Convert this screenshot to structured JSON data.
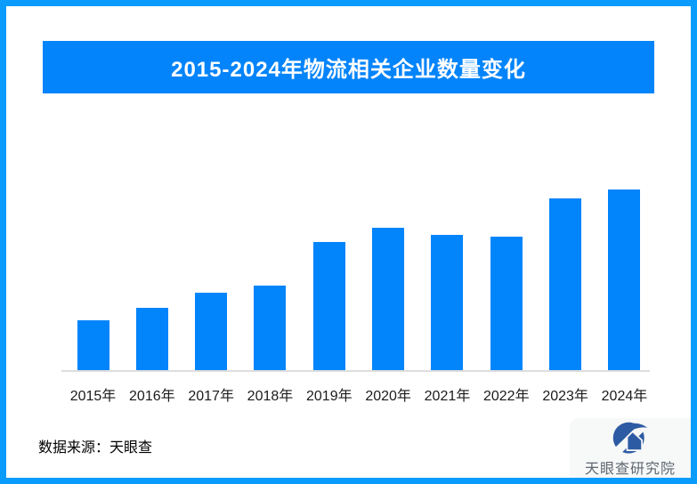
{
  "frame": {
    "border_color": "#0a9cfc"
  },
  "title_banner": {
    "text": "2015-2024年物流相关企业数量变化",
    "bg_color": "#0484fa",
    "text_color": "#ffffff"
  },
  "chart_data": {
    "type": "bar",
    "title": "2015-2024年物流相关企业数量变化",
    "categories": [
      "2015年",
      "2016年",
      "2017年",
      "2018年",
      "2019年",
      "2020年",
      "2021年",
      "2022年",
      "2023年",
      "2024年"
    ],
    "values": [
      28,
      35,
      43,
      47,
      71,
      79,
      75,
      74,
      95,
      100
    ],
    "value_note": "relative index estimated from bar heights; no y-axis or value labels shown (2024 = 100)",
    "xlabel": "",
    "ylabel": "",
    "ylim": [
      0,
      100
    ],
    "grid": false,
    "legend": false,
    "bar_color": "#0284fb",
    "axis_line_color": "#dedede"
  },
  "footer": {
    "source_text": "数据来源：天眼查",
    "logo": {
      "text": "天眼查研究院",
      "icon": "tianyancha-eye-logo",
      "circle_color": "#2d5ba3",
      "text_color": "#5f6770"
    }
  }
}
